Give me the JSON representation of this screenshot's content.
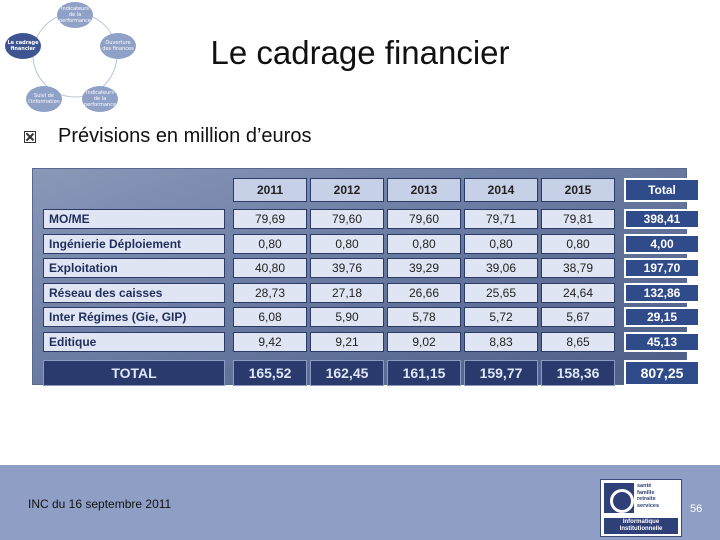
{
  "cycle": {
    "nodes": [
      "Indicateurs de la performance",
      "Le cadrage financier",
      "Ouverture des finances",
      "Suivi de l'information",
      "Indicateurs de la performance"
    ],
    "active_index": 1
  },
  "title": "Le cadrage financier",
  "bullet": "Prévisions en million d’euros",
  "table": {
    "headers": [
      "2011",
      "2012",
      "2013",
      "2014",
      "2015",
      "Total"
    ],
    "rows": [
      {
        "label": "MO/ME",
        "values": [
          "79,69",
          "79,60",
          "79,60",
          "79,71",
          "79,81"
        ],
        "total": "398,41"
      },
      {
        "label": "Ingénierie Déploiement",
        "values": [
          "0,80",
          "0,80",
          "0,80",
          "0,80",
          "0,80"
        ],
        "total": "4,00"
      },
      {
        "label": "Exploitation",
        "values": [
          "40,80",
          "39,76",
          "39,29",
          "39,06",
          "38,79"
        ],
        "total": "197,70"
      },
      {
        "label": "Réseau des caisses",
        "values": [
          "28,73",
          "27,18",
          "26,66",
          "25,65",
          "24,64"
        ],
        "total": "132,86"
      },
      {
        "label": "Inter Régimes (Gie, GIP)",
        "values": [
          "6,08",
          "5,90",
          "5,78",
          "5,72",
          "5,67"
        ],
        "total": "29,15"
      },
      {
        "label": "Editique",
        "values": [
          "9,42",
          "9,21",
          "9,02",
          "8,83",
          "8,65"
        ],
        "total": "45,13"
      }
    ],
    "total_row": {
      "label": "TOTAL",
      "values": [
        "165,52",
        "162,45",
        "161,15",
        "159,77",
        "158,36"
      ],
      "total": "807,25"
    }
  },
  "footer": {
    "text": "INC du 16 septembre 2011",
    "page": "56",
    "logo": {
      "lines": [
        "santé",
        "famille",
        "retraite",
        "services"
      ],
      "bottom": [
        "Informatique",
        "Institutionnelle"
      ]
    }
  }
}
